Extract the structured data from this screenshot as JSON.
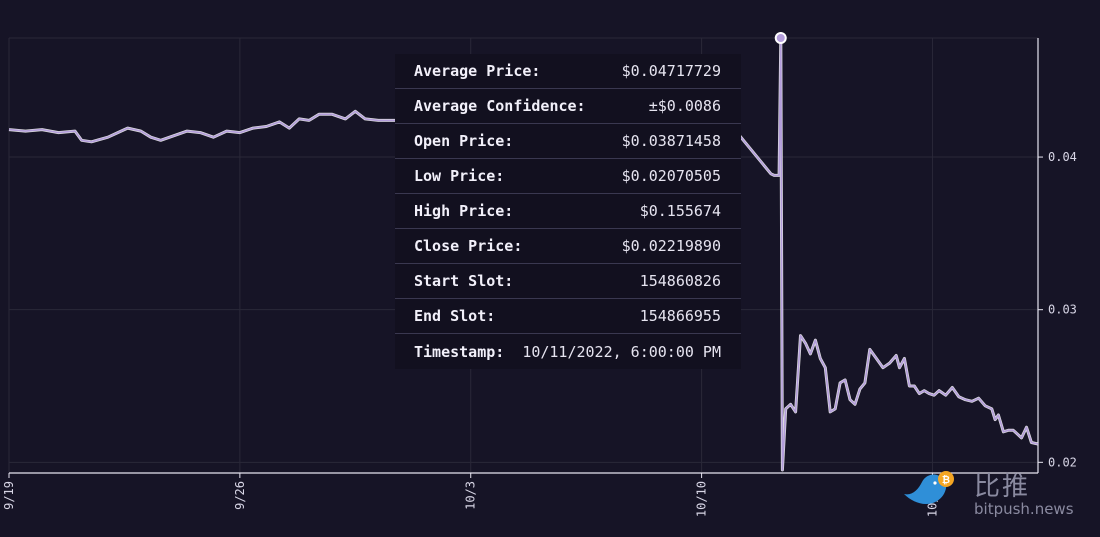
{
  "chart_data": {
    "type": "line",
    "x_tick_labels": [
      "9/19",
      "9/26",
      "10/3",
      "10/10",
      "10/17"
    ],
    "y_tick_labels": [
      "0.04",
      "0.03",
      "0.02"
    ],
    "y_ticks": [
      0.04,
      0.03,
      0.02
    ],
    "ylim": [
      0.0193,
      0.0478
    ],
    "x_range_days": [
      0,
      28
    ],
    "grid": true,
    "line_color": "#b39ddb",
    "series": [
      {
        "points": [
          [
            0,
            0.0418
          ],
          [
            0.5,
            0.0417
          ],
          [
            1,
            0.0418
          ],
          [
            1.5,
            0.0416
          ],
          [
            2,
            0.0417
          ],
          [
            2.2,
            0.0411
          ],
          [
            2.5,
            0.041
          ],
          [
            3,
            0.0413
          ],
          [
            3.3,
            0.0416
          ],
          [
            3.6,
            0.0419
          ],
          [
            4,
            0.0417
          ],
          [
            4.3,
            0.0413
          ],
          [
            4.6,
            0.0411
          ],
          [
            5,
            0.0414
          ],
          [
            5.4,
            0.0417
          ],
          [
            5.8,
            0.0416
          ],
          [
            6.2,
            0.0413
          ],
          [
            6.6,
            0.0417
          ],
          [
            7,
            0.0416
          ],
          [
            7.4,
            0.0419
          ],
          [
            7.8,
            0.042
          ],
          [
            8.2,
            0.0423
          ],
          [
            8.5,
            0.0419
          ],
          [
            8.8,
            0.0425
          ],
          [
            9.1,
            0.0424
          ],
          [
            9.4,
            0.0428
          ],
          [
            9.8,
            0.0428
          ],
          [
            10.2,
            0.0425
          ],
          [
            10.5,
            0.043
          ],
          [
            10.8,
            0.0425
          ],
          [
            11.2,
            0.0424
          ],
          [
            11.6,
            0.0424
          ],
          [
            12,
            0.0424
          ],
          [
            12.4,
            0.0425
          ],
          [
            12.8,
            0.0424
          ],
          [
            13.1,
            0.0426
          ],
          [
            13.4,
            0.0424
          ],
          [
            13.7,
            0.0421
          ],
          [
            14,
            0.0422
          ],
          [
            15,
            0.0422
          ],
          [
            16,
            0.0421
          ],
          [
            17,
            0.0421
          ],
          [
            18,
            0.042
          ],
          [
            19,
            0.0419
          ],
          [
            20,
            0.0418
          ],
          [
            21,
            0.0418
          ],
          [
            22,
            0.0418
          ],
          [
            23.1,
            0.0389
          ],
          [
            23.2,
            0.0388
          ],
          [
            23.35,
            0.0388
          ],
          [
            23.4,
            0.0478
          ],
          [
            23.45,
            0.0195
          ],
          [
            23.55,
            0.0235
          ],
          [
            23.7,
            0.0238
          ],
          [
            23.85,
            0.0233
          ],
          [
            24.0,
            0.0283
          ],
          [
            24.15,
            0.0278
          ],
          [
            24.3,
            0.0271
          ],
          [
            24.45,
            0.028
          ],
          [
            24.6,
            0.0268
          ],
          [
            24.75,
            0.0262
          ],
          [
            24.9,
            0.0233
          ],
          [
            25.05,
            0.0235
          ],
          [
            25.2,
            0.0252
          ],
          [
            25.35,
            0.0254
          ],
          [
            25.5,
            0.0241
          ],
          [
            25.65,
            0.0238
          ],
          [
            25.8,
            0.0248
          ],
          [
            25.95,
            0.0252
          ],
          [
            26.1,
            0.0274
          ],
          [
            26.3,
            0.0268
          ],
          [
            26.5,
            0.0262
          ],
          [
            26.7,
            0.0265
          ],
          [
            26.9,
            0.027
          ],
          [
            27.0,
            0.0262
          ],
          [
            27.15,
            0.0268
          ],
          [
            27.3,
            0.025
          ],
          [
            27.45,
            0.025
          ],
          [
            27.6,
            0.0245
          ],
          [
            27.75,
            0.0247
          ],
          [
            27.9,
            0.0245
          ],
          [
            28.05,
            0.0244
          ],
          [
            28.2,
            0.0247
          ],
          [
            28.4,
            0.0244
          ],
          [
            28.6,
            0.0249
          ],
          [
            28.8,
            0.0243
          ],
          [
            29.0,
            0.0241
          ],
          [
            29.2,
            0.024
          ],
          [
            29.4,
            0.0242
          ],
          [
            29.6,
            0.0237
          ],
          [
            29.8,
            0.0235
          ],
          [
            29.9,
            0.0228
          ],
          [
            30.0,
            0.0231
          ],
          [
            30.15,
            0.022
          ],
          [
            30.3,
            0.0221
          ],
          [
            30.45,
            0.0221
          ],
          [
            30.55,
            0.0219
          ],
          [
            30.7,
            0.0216
          ],
          [
            30.85,
            0.0223
          ],
          [
            31.0,
            0.0213
          ],
          [
            31.2,
            0.0212
          ]
        ]
      }
    ],
    "highlight_point": {
      "x": 23.4,
      "y": 0.0478
    }
  },
  "tooltip": {
    "rows": [
      {
        "label": "Average Price:",
        "value": "$0.04717729"
      },
      {
        "label": "Average Confidence:",
        "value": "±$0.0086"
      },
      {
        "label": "Open Price:",
        "value": "$0.03871458"
      },
      {
        "label": "Low Price:",
        "value": "$0.02070505"
      },
      {
        "label": "High Price:",
        "value": "$0.155674"
      },
      {
        "label": "Close Price:",
        "value": "$0.02219890"
      },
      {
        "label": "Start Slot:",
        "value": "154860826"
      },
      {
        "label": "End Slot:",
        "value": "154866955"
      },
      {
        "label": "Timestamp:",
        "value": "10/11/2022, 6:00:00 PM"
      }
    ]
  },
  "watermark": {
    "chinese": "比推",
    "english": "bitpush.news"
  },
  "colors": {
    "background": "#161426",
    "grid": "#2a2838",
    "axis": "#e6e4f0",
    "line": "#b39ddb",
    "tooltip_bg": "#12101f"
  }
}
